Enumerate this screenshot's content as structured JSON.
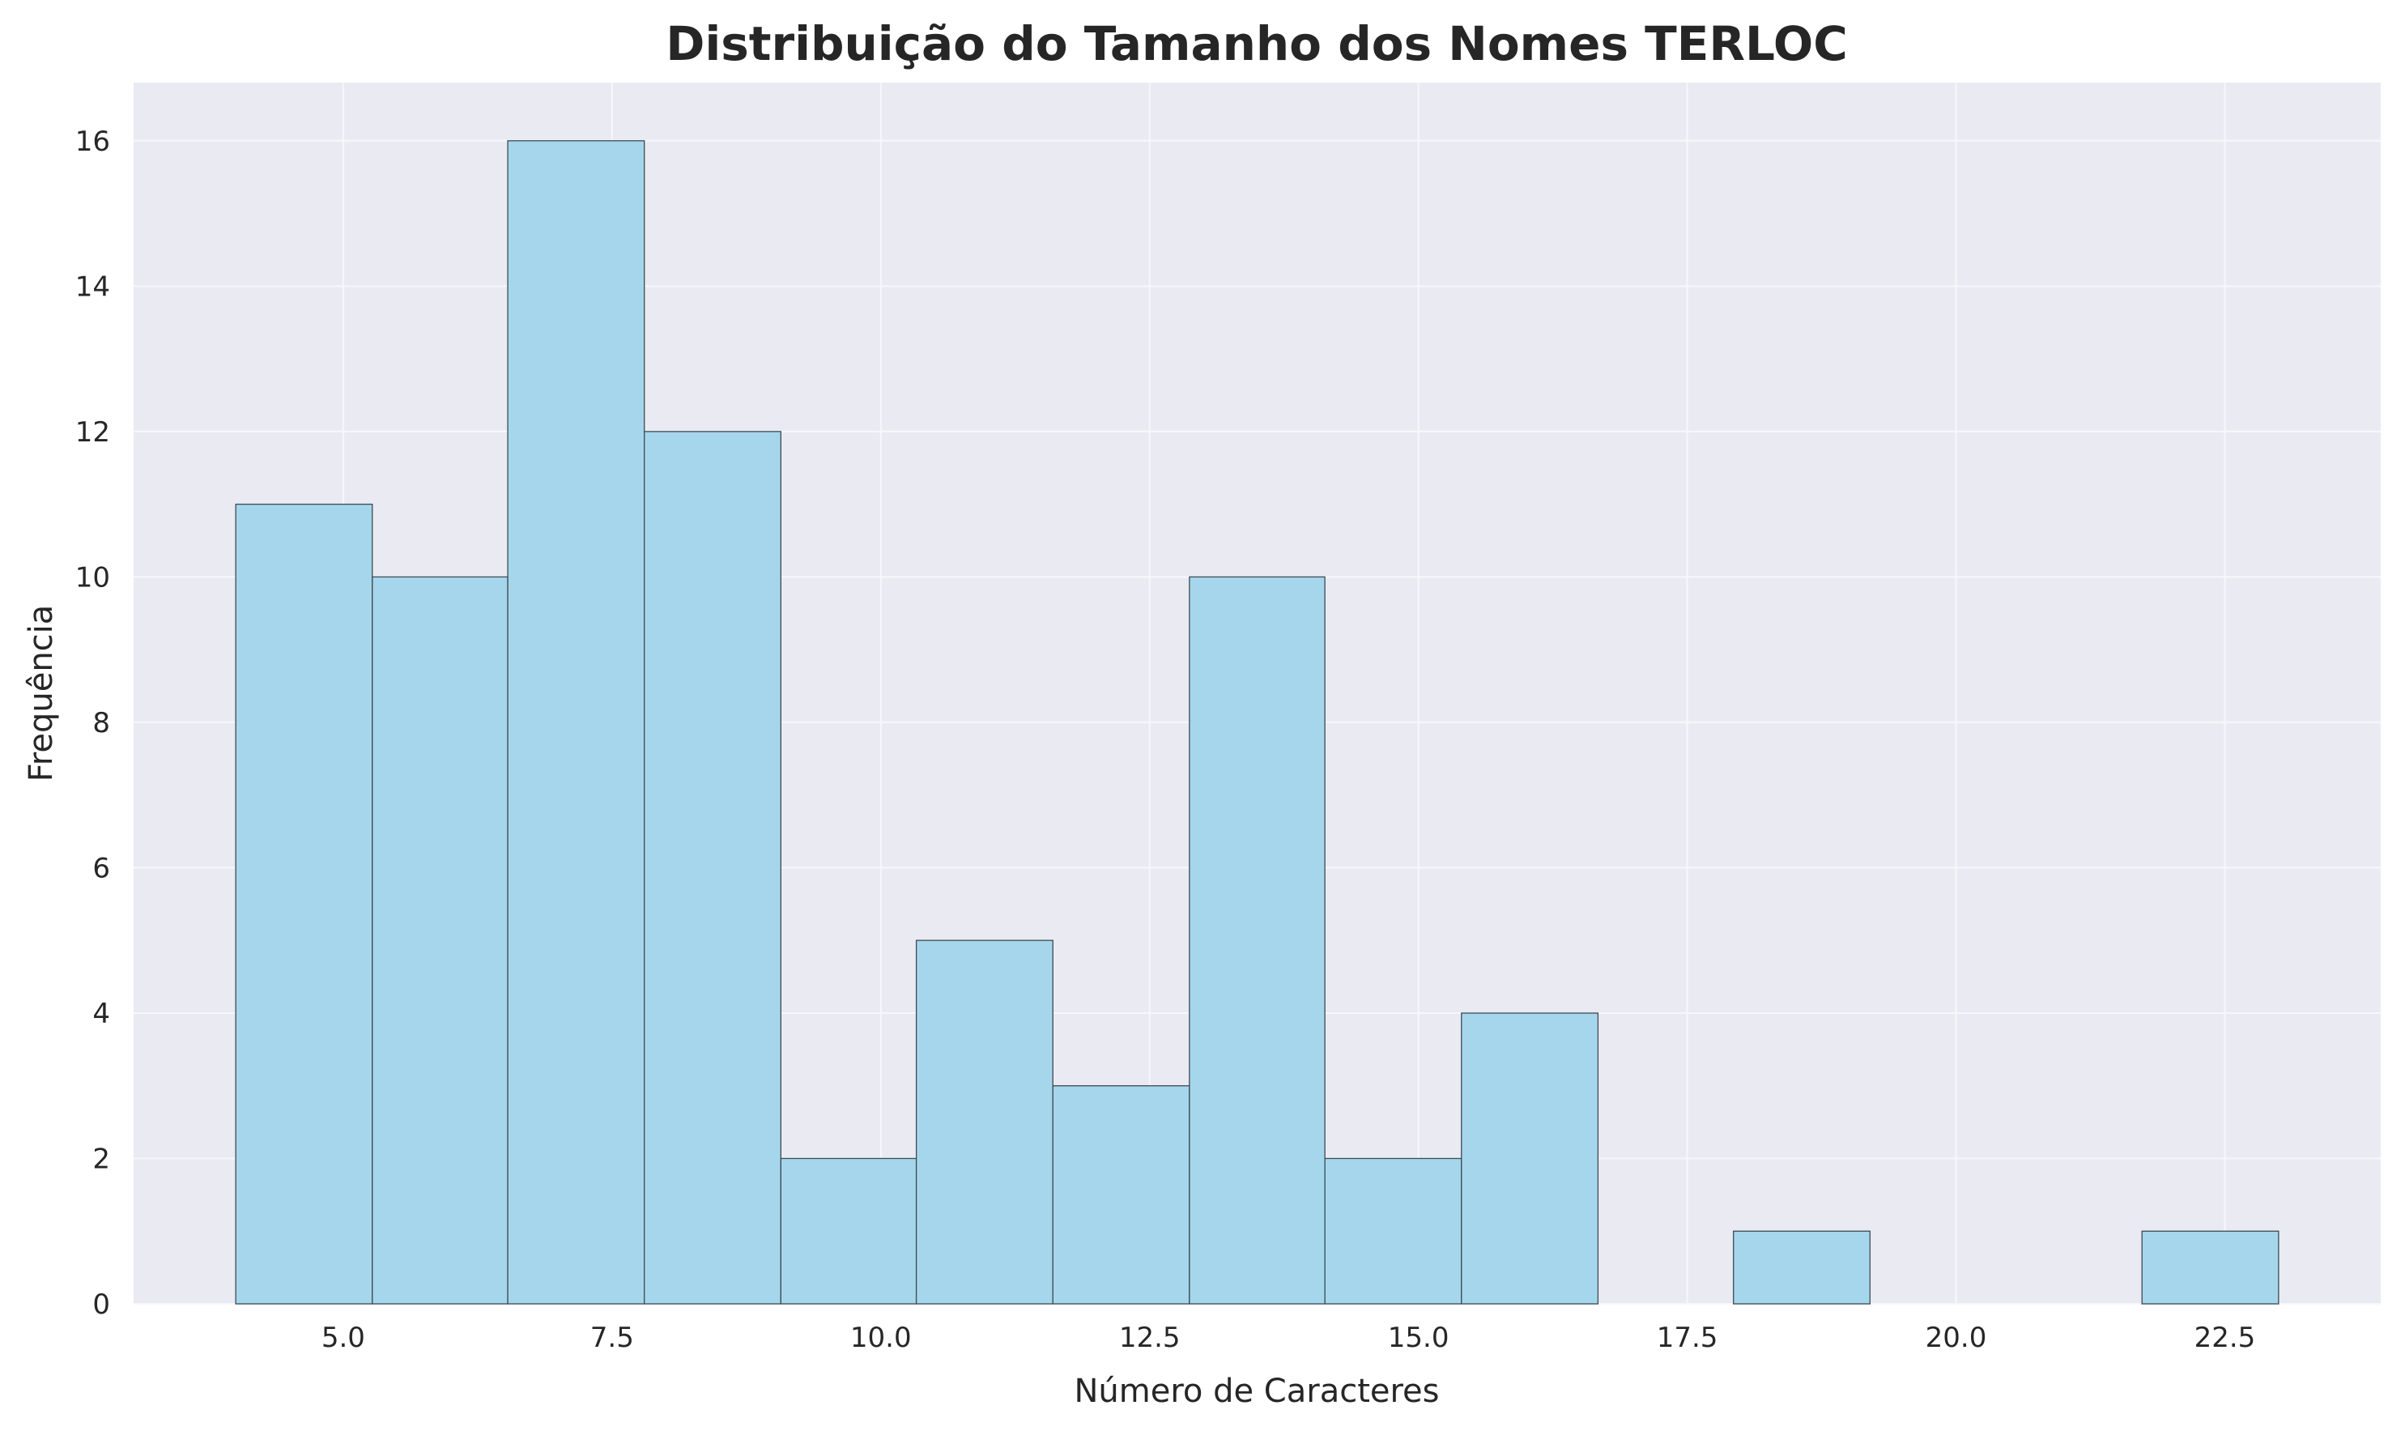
{
  "chart_data": {
    "type": "bar",
    "title": "Distribuição do Tamanho dos Nomes TERLOC",
    "xlabel": "Número de Caracteres",
    "ylabel": "Frequência",
    "bins": [
      {
        "start": 4.0,
        "end": 5.27,
        "count": 11
      },
      {
        "start": 5.27,
        "end": 6.53,
        "count": 10
      },
      {
        "start": 6.53,
        "end": 7.8,
        "count": 16
      },
      {
        "start": 7.8,
        "end": 9.07,
        "count": 12
      },
      {
        "start": 9.07,
        "end": 10.33,
        "count": 2
      },
      {
        "start": 10.33,
        "end": 11.6,
        "count": 5
      },
      {
        "start": 11.6,
        "end": 12.87,
        "count": 3
      },
      {
        "start": 12.87,
        "end": 14.13,
        "count": 10
      },
      {
        "start": 14.13,
        "end": 15.4,
        "count": 2
      },
      {
        "start": 15.4,
        "end": 16.67,
        "count": 4
      },
      {
        "start": 16.67,
        "end": 17.93,
        "count": 0
      },
      {
        "start": 17.93,
        "end": 19.2,
        "count": 1
      },
      {
        "start": 19.2,
        "end": 20.47,
        "count": 0
      },
      {
        "start": 20.47,
        "end": 21.73,
        "count": 0
      },
      {
        "start": 21.73,
        "end": 23.0,
        "count": 1
      }
    ],
    "xlim": [
      3.05,
      23.95
    ],
    "ylim": [
      0,
      16.8
    ],
    "xticks": [
      5.0,
      7.5,
      10.0,
      12.5,
      15.0,
      17.5,
      20.0,
      22.5
    ],
    "xtick_labels": [
      "5.0",
      "7.5",
      "10.0",
      "12.5",
      "15.0",
      "17.5",
      "20.0",
      "22.5"
    ],
    "yticks": [
      0,
      2,
      4,
      6,
      8,
      10,
      12,
      14,
      16
    ],
    "ytick_labels": [
      "0",
      "2",
      "4",
      "6",
      "8",
      "10",
      "12",
      "14",
      "16"
    ],
    "grid": true,
    "colors": {
      "bar_fill": "#a6d6ec",
      "bar_edge": "#3d4a52",
      "plot_background": "#eaeaf2",
      "grid": "#f7f7fb",
      "text": "#262626"
    }
  }
}
